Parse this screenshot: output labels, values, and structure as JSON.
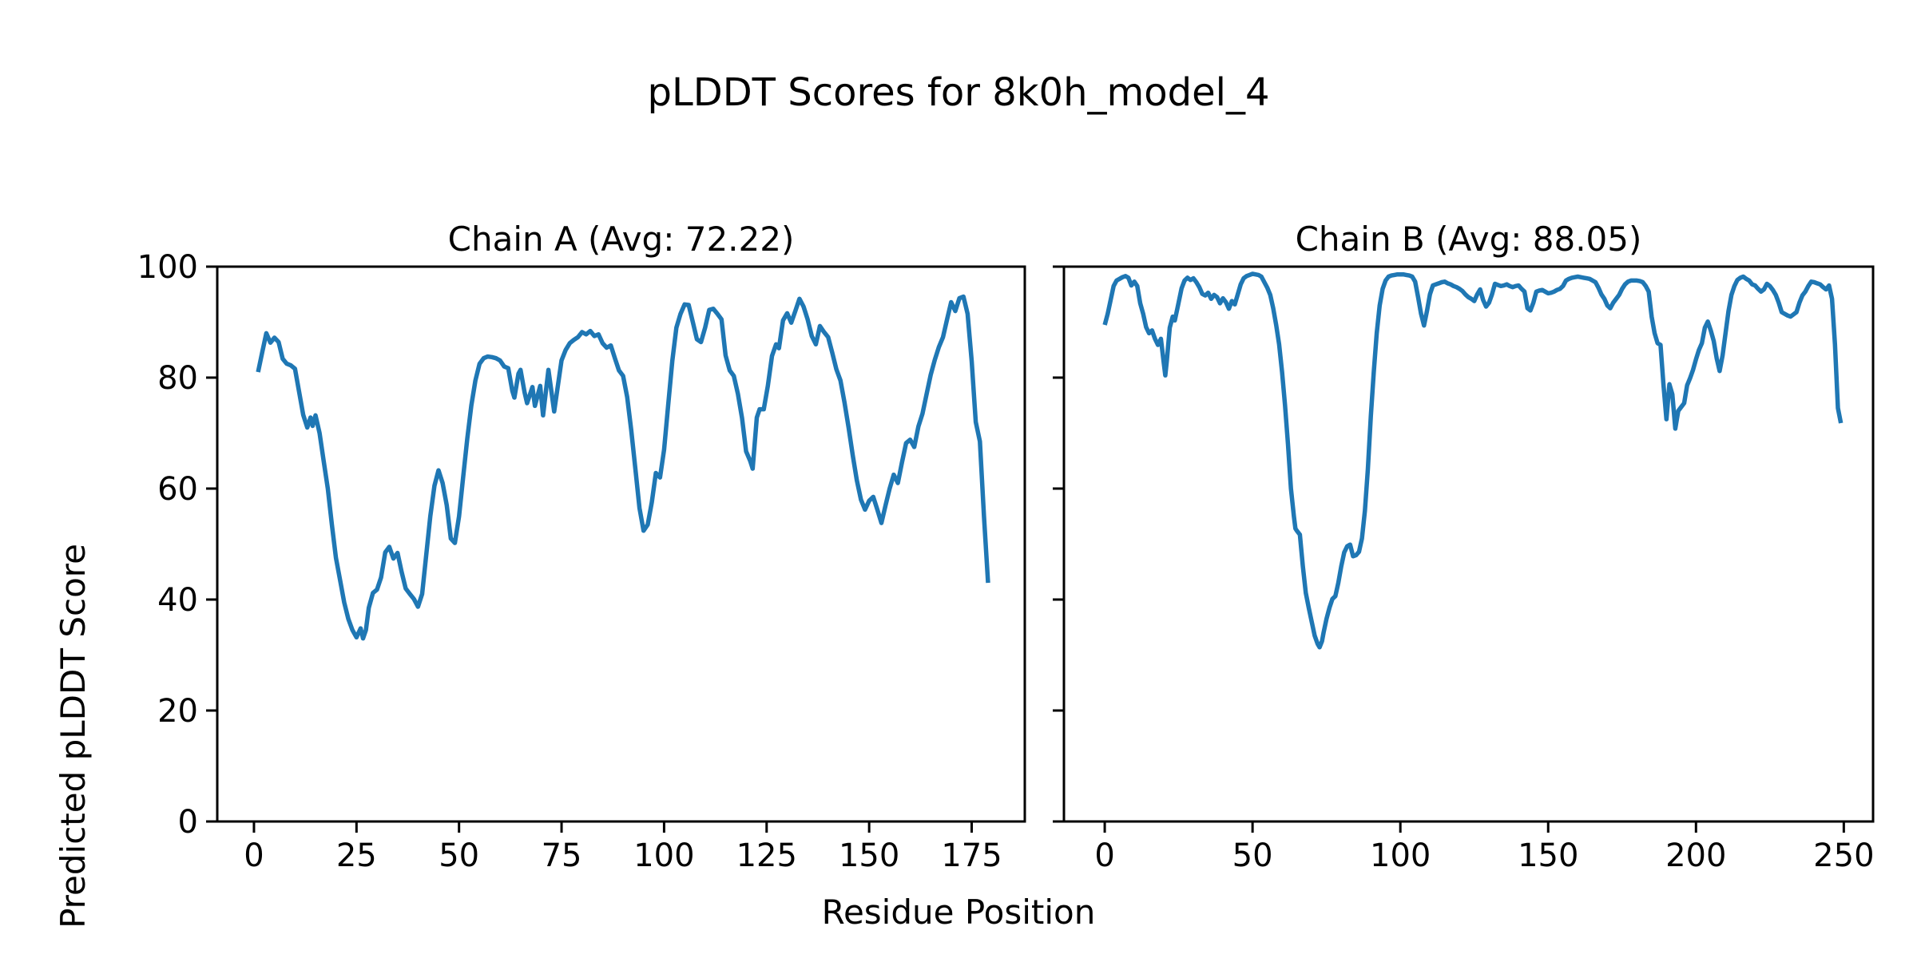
{
  "figure": {
    "title": "pLDDT Scores for 8k0h_model_4",
    "xlabel": "Residue Position",
    "ylabel": "Predicted pLDDT Score",
    "background_color": "#ffffff",
    "text_color": "#000000"
  },
  "chart_data": {
    "type": "line",
    "line_color": "#1f77b4",
    "axis_color": "#000000",
    "title": "pLDDT Scores for 8k0h_model_4",
    "xlabel": "Residue Position",
    "ylabel": "Predicted pLDDT Score",
    "grid": false,
    "legend": "none",
    "charts": [
      {
        "title": "Chain A (Avg: 72.22)",
        "average": 72.22,
        "xlim": [
          -8.95,
          187.95
        ],
        "ylim": [
          0,
          100
        ],
        "x_ticks": [
          0,
          25,
          50,
          75,
          100,
          125,
          150,
          175
        ],
        "y_ticks": [
          0,
          20,
          40,
          60,
          80,
          100
        ],
        "show_y_tick_labels": true,
        "x": [
          1,
          2,
          3,
          4,
          5,
          6,
          7,
          8,
          9,
          10,
          11,
          12,
          13,
          13.8,
          14.3,
          15,
          16,
          17,
          18,
          19,
          20,
          21,
          22,
          23,
          24,
          25,
          26,
          26.6,
          27.3,
          28,
          29,
          30,
          31,
          32,
          33,
          34,
          35,
          36,
          37,
          38,
          39,
          40,
          41,
          42,
          43,
          44,
          45,
          46,
          47,
          48,
          49,
          50,
          51,
          52,
          53,
          54,
          55,
          56,
          57,
          58,
          59,
          60,
          61,
          62,
          63,
          63.5,
          64.5,
          65,
          66,
          66.6,
          67.9,
          68.5,
          69.8,
          70.5,
          71.8,
          73.2,
          75,
          76,
          77,
          78,
          79,
          80,
          81,
          82,
          83,
          84,
          85,
          86,
          87,
          88,
          89,
          90,
          91,
          92,
          93,
          94,
          95,
          96,
          97,
          98,
          99,
          100,
          101,
          102,
          103,
          104,
          105,
          106,
          107,
          108,
          109,
          110,
          111,
          112,
          113,
          114,
          115,
          116,
          117,
          118,
          119,
          120,
          121,
          121.6,
          122.6,
          123.3,
          124.3,
          125.3,
          126.3,
          127.3,
          128,
          129,
          130,
          131,
          132,
          133,
          134,
          135,
          136,
          137,
          138,
          139,
          140,
          141,
          142,
          143,
          144,
          145,
          146,
          147,
          148,
          149,
          150,
          151,
          152,
          153,
          154,
          155,
          156,
          157,
          158,
          159,
          160,
          161,
          162,
          163,
          164,
          165,
          166,
          167,
          168,
          169,
          170,
          171,
          172,
          173,
          174,
          175,
          176,
          177,
          178,
          179
        ],
        "y": [
          81,
          84.5,
          88,
          86.3,
          87.2,
          86.4,
          83.4,
          82.5,
          82.2,
          81.6,
          77.5,
          73.3,
          71,
          72.8,
          71.3,
          73.2,
          70,
          65,
          60,
          53.5,
          47.5,
          43.5,
          39.5,
          36.5,
          34.5,
          33.2,
          34.8,
          33,
          34.5,
          38.5,
          41.2,
          41.8,
          44,
          48.5,
          49.5,
          47.4,
          48.4,
          45,
          42,
          41,
          40.1,
          38.7,
          41,
          48,
          55,
          60.5,
          63.3,
          61,
          57,
          51,
          50.2,
          55,
          62,
          69,
          75,
          79.5,
          82.5,
          83.5,
          83.8,
          83.7,
          83.5,
          83.1,
          82,
          81.7,
          77.6,
          76.4,
          80.7,
          81.4,
          77.3,
          75.4,
          78.3,
          74.9,
          78.5,
          73.2,
          81.4,
          73.9,
          83.1,
          85,
          86.2,
          86.8,
          87.3,
          88.2,
          87.8,
          88.4,
          87.5,
          87.8,
          86.2,
          85.4,
          85.8,
          83.5,
          81.3,
          80.3,
          76.5,
          70.5,
          63.5,
          56.5,
          52.4,
          53.5,
          57.5,
          62.8,
          62,
          67,
          75,
          83,
          89,
          91.5,
          93.2,
          93.1,
          90,
          86.9,
          86.4,
          89,
          92.2,
          92.4,
          91.5,
          90.5,
          84,
          81.3,
          80.3,
          77.1,
          72.7,
          66.7,
          65,
          63.6,
          72.8,
          74.3,
          74.3,
          78.5,
          83.9,
          86,
          85.3,
          90.3,
          91.6,
          89.9,
          92,
          94.2,
          92.8,
          90.5,
          87.5,
          86,
          89.3,
          88.2,
          87.3,
          84.5,
          81.5,
          79.5,
          75.5,
          70.9,
          66,
          61.5,
          58,
          56.2,
          57.8,
          58.5,
          56.2,
          53.8,
          57,
          60,
          62.5,
          61,
          64.7,
          68.2,
          68.8,
          67.5,
          71.2,
          73.5,
          77,
          80.5,
          83.2,
          85.5,
          87.3,
          90.5,
          93.6,
          92,
          94.3,
          94.6,
          91.5,
          83,
          72,
          68.5,
          55,
          43
        ]
      },
      {
        "title": "Chain B (Avg: 88.05)",
        "average": 88.05,
        "xlim": [
          -13.8,
          259.9
        ],
        "ylim": [
          0,
          100
        ],
        "x_ticks": [
          0,
          50,
          100,
          150,
          200,
          250
        ],
        "y_ticks": [
          0,
          20,
          40,
          60,
          80,
          100
        ],
        "show_y_tick_labels": false,
        "x": [
          0,
          1,
          2,
          3,
          4,
          5,
          6,
          7,
          8,
          9,
          10,
          11,
          12,
          13,
          14,
          15,
          16,
          17,
          18,
          19,
          20,
          20.5,
          21,
          22,
          23,
          23.7,
          24.6,
          26,
          27,
          28,
          29,
          30,
          31,
          32,
          33,
          34,
          35,
          36,
          37,
          38,
          39,
          40,
          41,
          42,
          43,
          44,
          45,
          46,
          47,
          48,
          49,
          50,
          51,
          52,
          53,
          54,
          55,
          56,
          57,
          58,
          59,
          60,
          61,
          62,
          63,
          64,
          64.5,
          65,
          66,
          67,
          68,
          69,
          70,
          71,
          72,
          72.7,
          73.5,
          74,
          75,
          76,
          77,
          78,
          79,
          80,
          81,
          82,
          83,
          84,
          85,
          86,
          87,
          88,
          89,
          90,
          91,
          92,
          93,
          94,
          95,
          96,
          97,
          98,
          99,
          100,
          101,
          102,
          103,
          104,
          105,
          106,
          107,
          108,
          109,
          110,
          111,
          112,
          113,
          114,
          115,
          116,
          117,
          118,
          119,
          120,
          121,
          122,
          123,
          124,
          125,
          126,
          127,
          128,
          129,
          130,
          131,
          132,
          133,
          134,
          135,
          136,
          137,
          138,
          139,
          140,
          141,
          142,
          143,
          144,
          145,
          146,
          147,
          148,
          149,
          150,
          151,
          152,
          153,
          154,
          155,
          156,
          157,
          158,
          159,
          160,
          161,
          162,
          163,
          164,
          165,
          166,
          167,
          168,
          169,
          170,
          171,
          172,
          173,
          174,
          175,
          176,
          177,
          178,
          179,
          180,
          181,
          182,
          183,
          184,
          185,
          186,
          187,
          188,
          189,
          190,
          191,
          192,
          193,
          194,
          195,
          196,
          197,
          198,
          199,
          200,
          201,
          202,
          203,
          204,
          205,
          206,
          207,
          208,
          209,
          210,
          211,
          212,
          213,
          214,
          215,
          216,
          217,
          218,
          219,
          220,
          221,
          222,
          223,
          224,
          225,
          226,
          227,
          228,
          229,
          230,
          231,
          232,
          233,
          234,
          235,
          236,
          237,
          238,
          239,
          240,
          241,
          242,
          243,
          244,
          245,
          246,
          247,
          248,
          249
        ],
        "y": [
          89.5,
          91.5,
          94,
          96.5,
          97.5,
          97.8,
          98.1,
          98.3,
          98,
          96.6,
          97.3,
          96.5,
          93.4,
          91.5,
          89.1,
          88,
          88.5,
          87,
          85.9,
          87,
          82.5,
          80.4,
          83,
          89,
          91,
          90.3,
          92.5,
          96.1,
          97.5,
          98,
          97.6,
          97.9,
          97.2,
          96.3,
          95.1,
          94.8,
          95.3,
          94.2,
          94.9,
          94.5,
          93.4,
          94.3,
          93.6,
          92.4,
          93.8,
          93.2,
          95,
          96.8,
          97.9,
          98.3,
          98.5,
          98.7,
          98.6,
          98.5,
          98.2,
          97.2,
          96.2,
          94.9,
          92.5,
          89.5,
          86,
          81,
          75,
          68,
          60,
          55,
          52.8,
          52.4,
          51.7,
          46,
          41.2,
          38.5,
          36,
          33.5,
          32,
          31.4,
          32.5,
          34,
          36.5,
          38.5,
          40.1,
          40.6,
          43,
          46,
          48.5,
          49.6,
          49.9,
          47.8,
          48,
          48.6,
          51,
          56,
          63.5,
          73,
          81,
          88,
          93,
          96,
          97.5,
          98.2,
          98.4,
          98.5,
          98.6,
          98.6,
          98.6,
          98.5,
          98.4,
          98.2,
          97.3,
          94.5,
          91.5,
          89.4,
          92,
          95,
          96.6,
          96.8,
          97,
          97.2,
          97.3,
          97,
          96.8,
          96.5,
          96.3,
          96,
          95.6,
          95,
          94.5,
          94.2,
          93.8,
          95,
          95.9,
          94,
          92.8,
          93.5,
          95,
          96.9,
          96.7,
          96.5,
          96.6,
          96.8,
          96.5,
          96.3,
          96.5,
          96.6,
          96,
          95.5,
          92.5,
          92.1,
          93.5,
          95.5,
          95.7,
          95.8,
          95.5,
          95.2,
          95.3,
          95.5,
          95.8,
          96,
          96.5,
          97.5,
          97.8,
          98,
          98.1,
          98.2,
          98.1,
          98,
          97.9,
          97.8,
          97.5,
          97.2,
          96.2,
          95,
          94.2,
          93,
          92.5,
          93.5,
          94.2,
          94.9,
          96,
          96.8,
          97.3,
          97.5,
          97.5,
          97.5,
          97.4,
          97.2,
          96.5,
          95.5,
          91,
          88,
          86.2,
          85.9,
          78.7,
          72.5,
          78.8,
          77,
          70.8,
          74,
          74.7,
          75.4,
          78.6,
          79.9,
          81.4,
          83.3,
          85,
          86.2,
          89,
          90.1,
          88.5,
          86.6,
          83.5,
          81.2,
          84,
          88,
          92,
          94.9,
          96.5,
          97.6,
          98,
          98.2,
          97.8,
          97.5,
          96.8,
          96.6,
          96,
          95.5,
          95.9,
          96.9,
          96.5,
          95.8,
          94.9,
          93.5,
          91.8,
          91.5,
          91.2,
          91,
          91.4,
          91.8,
          93.5,
          94.8,
          95.5,
          96.5,
          97.3,
          97.2,
          97,
          96.8,
          96.3,
          95.9,
          96.6,
          94.2,
          86,
          74.5,
          71.8
        ]
      }
    ]
  }
}
